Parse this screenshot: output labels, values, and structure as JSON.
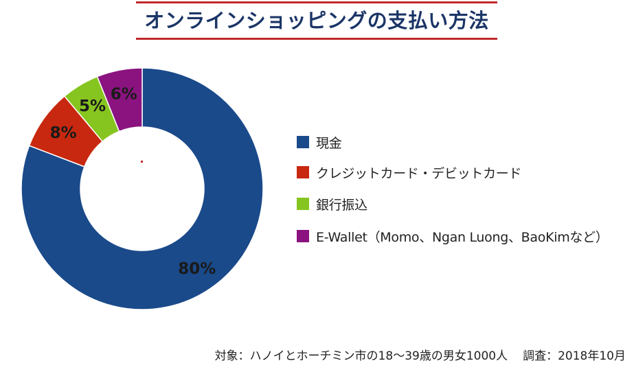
{
  "title": "オンラインショッピングの支払い方法",
  "colors": {
    "title_text": "#1b3567",
    "title_rule": "#c0282b",
    "center_dot": "#c0282b"
  },
  "chart_data": {
    "type": "pie",
    "variant": "donut",
    "start": "top",
    "direction": "clockwise",
    "legend_placement": "right",
    "series": [
      {
        "name": "現金",
        "value": 80,
        "label": "80%",
        "color": "#1a4a8a"
      },
      {
        "name": "クレジットカード・デビットカード",
        "value": 8,
        "label": "8%",
        "color": "#c8280f"
      },
      {
        "name": "銀行振込",
        "value": 5,
        "label": "5%",
        "color": "#86c520"
      },
      {
        "name": "E-Wallet（Momo、Ngan Luong、BaoKimなど）",
        "value": 6,
        "label": "6%",
        "color": "#8a1380"
      }
    ]
  },
  "footnote": {
    "survey_target": "対象：ハノイとホーチミン市の18〜39歳の男女1000人",
    "survey_date": "調査：2018年10月"
  }
}
